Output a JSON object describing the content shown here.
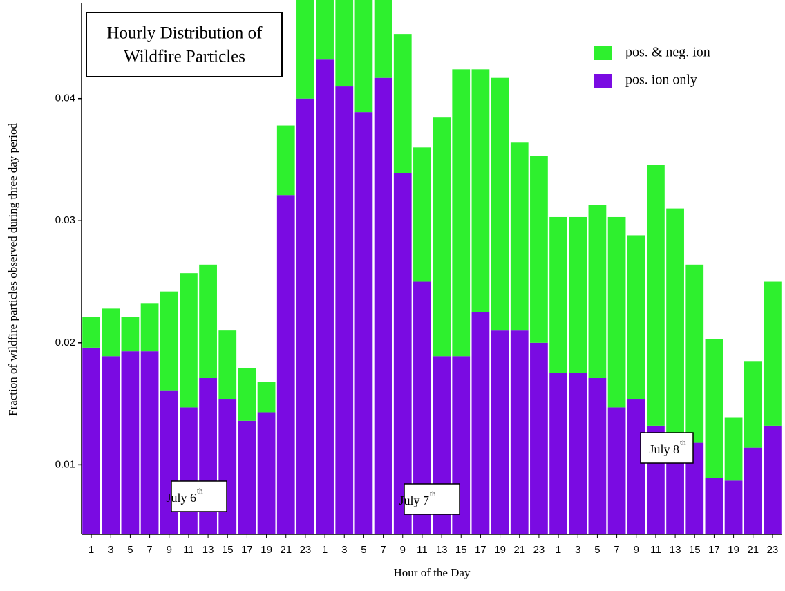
{
  "chart_data": {
    "type": "stacked_bar",
    "title": [
      "Hourly Distribution of",
      "Wildfire Particles"
    ],
    "xlabel": "Hour of the Day",
    "ylabel": "Fraction of wildfire particles observed during three day period",
    "categories": [
      "1",
      "3",
      "5",
      "7",
      "9",
      "11",
      "13",
      "15",
      "17",
      "19",
      "21",
      "23",
      "1",
      "3",
      "5",
      "7",
      "9",
      "11",
      "13",
      "15",
      "17",
      "19",
      "21",
      "23",
      "1",
      "3",
      "5",
      "7",
      "9",
      "11",
      "13",
      "15",
      "17",
      "19",
      "21",
      "23"
    ],
    "series": [
      {
        "name": "pos. ion only",
        "color": "#7a0be2",
        "values": [
          0.0153,
          0.0146,
          0.015,
          0.015,
          0.0118,
          0.0104,
          0.0128,
          0.0111,
          0.0093,
          0.01,
          0.0278,
          0.0357,
          0.0389,
          0.0367,
          0.0346,
          0.0374,
          0.0296,
          0.0207,
          0.0146,
          0.0146,
          0.0182,
          0.0167,
          0.0167,
          0.0157,
          0.0132,
          0.0132,
          0.0128,
          0.0104,
          0.0111,
          0.0089,
          0.0079,
          0.0075,
          0.0046,
          0.0044,
          0.0071,
          0.0089
        ]
      },
      {
        "name": "pos. & neg. ion",
        "color": "#2ef02e",
        "values": [
          0.0025,
          0.0039,
          0.0028,
          0.0039,
          0.0081,
          0.011,
          0.0093,
          0.0056,
          0.0043,
          0.0025,
          0.0057,
          0.0108,
          0.0089,
          0.0103,
          0.0107,
          0.0104,
          0.0114,
          0.011,
          0.0196,
          0.0235,
          0.0199,
          0.0207,
          0.0154,
          0.0153,
          0.0128,
          0.0128,
          0.0142,
          0.0156,
          0.0134,
          0.0214,
          0.0188,
          0.0146,
          0.0114,
          0.0052,
          0.0071,
          0.0118
        ]
      }
    ],
    "ylim": [
      0.0043,
      0.0478
    ],
    "yticks": [
      0.01,
      0.02,
      0.03,
      0.04
    ],
    "legend": "upper right",
    "annotations": [
      {
        "text": "July 6",
        "sup": "th"
      },
      {
        "text": "July 7",
        "sup": "th"
      },
      {
        "text": "July 8",
        "sup": "th"
      }
    ]
  }
}
